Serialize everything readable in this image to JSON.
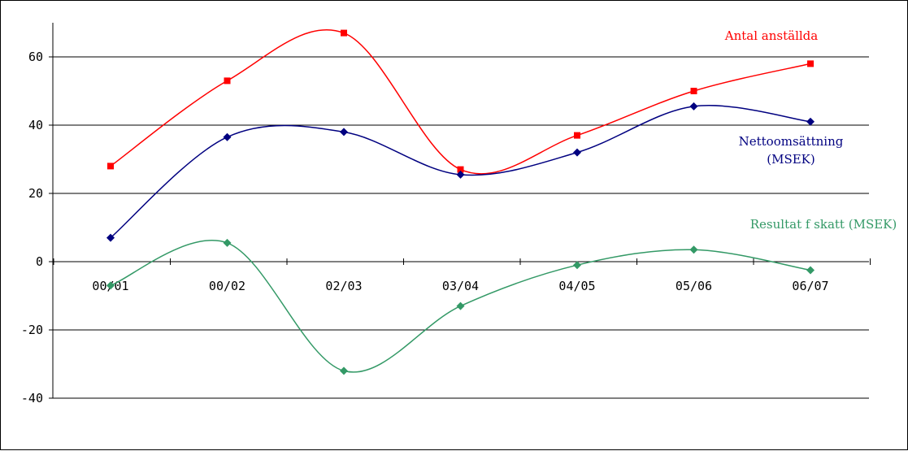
{
  "chart_data": {
    "type": "line",
    "categories": [
      "00/01",
      "00/02",
      "02/03",
      "03/04",
      "04/05",
      "05/06",
      "06/07"
    ],
    "series": [
      {
        "name": "Antal anställda",
        "label_lines": [
          "Antal anställda"
        ],
        "values": [
          28,
          53,
          67,
          27,
          37,
          50,
          58
        ],
        "color": "#ff0000",
        "marker": "square"
      },
      {
        "name": "Nettoomsättning (MSEK)",
        "label_lines": [
          "Nettoomsättning",
          "(MSEK)"
        ],
        "values": [
          7,
          36.5,
          38,
          25.5,
          32,
          45.5,
          41
        ],
        "color": "#000080",
        "marker": "diamond"
      },
      {
        "name": "Resultat f skatt (MSEK)",
        "label_lines": [
          "Resultat f skatt (MSEK)"
        ],
        "values": [
          -7,
          5.5,
          -32,
          -13,
          -1,
          3.5,
          -2.5
        ],
        "color": "#339966",
        "marker": "diamond"
      }
    ],
    "yticks": [
      -40,
      -20,
      0,
      20,
      40,
      60
    ],
    "ylim": [
      -40,
      70
    ],
    "grid": true,
    "title": "",
    "xlabel": "",
    "ylabel": ""
  }
}
